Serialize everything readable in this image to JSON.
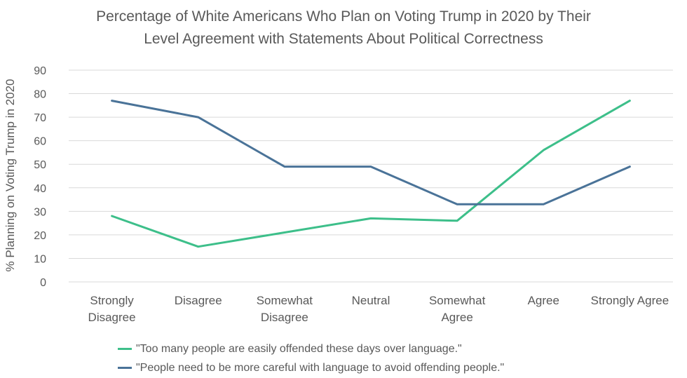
{
  "chart_data": {
    "type": "line",
    "title_lines": [
      "Percentage of White Americans Who Plan on Voting Trump in 2020 by Their",
      "Level Agreement with Statements About Political Correctness"
    ],
    "ylabel": "% Planning on Voting Trump in 2020",
    "xlabel": "",
    "ylim": [
      0,
      90
    ],
    "yticks": [
      0,
      10,
      20,
      30,
      40,
      50,
      60,
      70,
      80,
      90
    ],
    "grid": true,
    "legend_position": "bottom",
    "categories": [
      [
        "Strongly",
        "Disagree"
      ],
      [
        "Disagree"
      ],
      [
        "Somewhat",
        "Disagree"
      ],
      [
        "Neutral"
      ],
      [
        "Somewhat",
        "Agree"
      ],
      [
        "Agree"
      ],
      [
        "Strongly Agree"
      ]
    ],
    "series": [
      {
        "name": "\"Too many people are easily offended these days over language.\"",
        "color": "#3dbf8a",
        "values": [
          28,
          15,
          21,
          27,
          26,
          56,
          77
        ]
      },
      {
        "name": "\"People need to be more careful with language to avoid offending people.\"",
        "color": "#4a7398",
        "values": [
          77,
          70,
          49,
          49,
          33,
          33,
          49
        ]
      }
    ]
  }
}
